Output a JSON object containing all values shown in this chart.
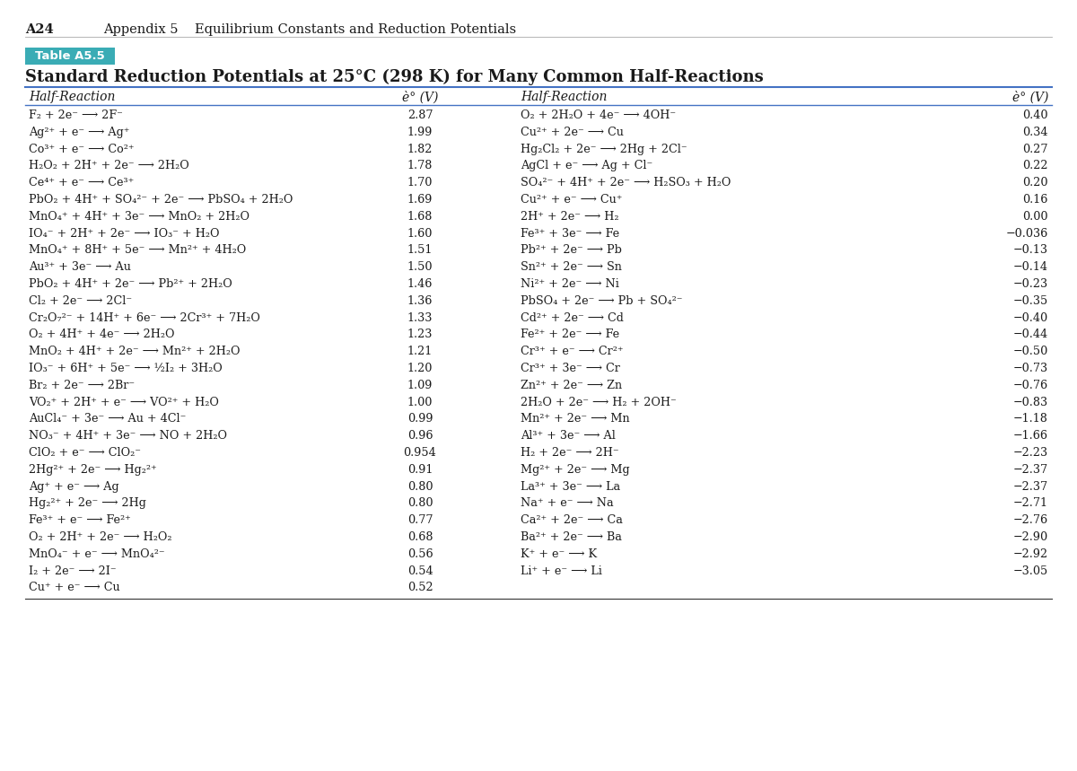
{
  "page_header_bold": "A24",
  "page_header_rest": "Appendix 5    Equilibrium Constants and Reduction Potentials",
  "table_label": "Table A5.5",
  "table_title": "Standard Reduction Potentials at 25°C (298 K) for Many Common Half-Reactions",
  "table_label_bg": "#3aacb5",
  "left_data": [
    [
      "F₂ + 2e⁻ ⟶ 2F⁻",
      "2.87"
    ],
    [
      "Ag²⁺ + e⁻ ⟶ Ag⁺",
      "1.99"
    ],
    [
      "Co³⁺ + e⁻ ⟶ Co²⁺",
      "1.82"
    ],
    [
      "H₂O₂ + 2H⁺ + 2e⁻ ⟶ 2H₂O",
      "1.78"
    ],
    [
      "Ce⁴⁺ + e⁻ ⟶ Ce³⁺",
      "1.70"
    ],
    [
      "PbO₂ + 4H⁺ + SO₄²⁻ + 2e⁻ ⟶ PbSO₄ + 2H₂O",
      "1.69"
    ],
    [
      "MnO₄⁺ + 4H⁺ + 3e⁻ ⟶ MnO₂ + 2H₂O",
      "1.68"
    ],
    [
      "IO₄⁻ + 2H⁺ + 2e⁻ ⟶ IO₃⁻ + H₂O",
      "1.60"
    ],
    [
      "MnO₄⁺ + 8H⁺ + 5e⁻ ⟶ Mn²⁺ + 4H₂O",
      "1.51"
    ],
    [
      "Au³⁺ + 3e⁻ ⟶ Au",
      "1.50"
    ],
    [
      "PbO₂ + 4H⁺ + 2e⁻ ⟶ Pb²⁺ + 2H₂O",
      "1.46"
    ],
    [
      "Cl₂ + 2e⁻ ⟶ 2Cl⁻",
      "1.36"
    ],
    [
      "Cr₂O₇²⁻ + 14H⁺ + 6e⁻ ⟶ 2Cr³⁺ + 7H₂O",
      "1.33"
    ],
    [
      "O₂ + 4H⁺ + 4e⁻ ⟶ 2H₂O",
      "1.23"
    ],
    [
      "MnO₂ + 4H⁺ + 2e⁻ ⟶ Mn²⁺ + 2H₂O",
      "1.21"
    ],
    [
      "IO₃⁻ + 6H⁺ + 5e⁻ ⟶ ½I₂ + 3H₂O",
      "1.20"
    ],
    [
      "Br₂ + 2e⁻ ⟶ 2Br⁻",
      "1.09"
    ],
    [
      "VO₂⁺ + 2H⁺ + e⁻ ⟶ VO²⁺ + H₂O",
      "1.00"
    ],
    [
      "AuCl₄⁻ + 3e⁻ ⟶ Au + 4Cl⁻",
      "0.99"
    ],
    [
      "NO₃⁻ + 4H⁺ + 3e⁻ ⟶ NO + 2H₂O",
      "0.96"
    ],
    [
      "ClO₂ + e⁻ ⟶ ClO₂⁻",
      "0.954"
    ],
    [
      "2Hg²⁺ + 2e⁻ ⟶ Hg₂²⁺",
      "0.91"
    ],
    [
      "Ag⁺ + e⁻ ⟶ Ag",
      "0.80"
    ],
    [
      "Hg₂²⁺ + 2e⁻ ⟶ 2Hg",
      "0.80"
    ],
    [
      "Fe³⁺ + e⁻ ⟶ Fe²⁺",
      "0.77"
    ],
    [
      "O₂ + 2H⁺ + 2e⁻ ⟶ H₂O₂",
      "0.68"
    ],
    [
      "MnO₄⁻ + e⁻ ⟶ MnO₄²⁻",
      "0.56"
    ],
    [
      "I₂ + 2e⁻ ⟶ 2I⁻",
      "0.54"
    ],
    [
      "Cu⁺ + e⁻ ⟶ Cu",
      "0.52"
    ]
  ],
  "right_data": [
    [
      "O₂ + 2H₂O + 4e⁻ ⟶ 4OH⁻",
      "0.40"
    ],
    [
      "Cu²⁺ + 2e⁻ ⟶ Cu",
      "0.34"
    ],
    [
      "Hg₂Cl₂ + 2e⁻ ⟶ 2Hg + 2Cl⁻",
      "0.27"
    ],
    [
      "AgCl + e⁻ ⟶ Ag + Cl⁻",
      "0.22"
    ],
    [
      "SO₄²⁻ + 4H⁺ + 2e⁻ ⟶ H₂SO₃ + H₂O",
      "0.20"
    ],
    [
      "Cu²⁺ + e⁻ ⟶ Cu⁺",
      "0.16"
    ],
    [
      "2H⁺ + 2e⁻ ⟶ H₂",
      "0.00"
    ],
    [
      "Fe³⁺ + 3e⁻ ⟶ Fe",
      "−0.036"
    ],
    [
      "Pb²⁺ + 2e⁻ ⟶ Pb",
      "−0.13"
    ],
    [
      "Sn²⁺ + 2e⁻ ⟶ Sn",
      "−0.14"
    ],
    [
      "Ni²⁺ + 2e⁻ ⟶ Ni",
      "−0.23"
    ],
    [
      "PbSO₄ + 2e⁻ ⟶ Pb + SO₄²⁻",
      "−0.35"
    ],
    [
      "Cd²⁺ + 2e⁻ ⟶ Cd",
      "−0.40"
    ],
    [
      "Fe²⁺ + 2e⁻ ⟶ Fe",
      "−0.44"
    ],
    [
      "Cr³⁺ + e⁻ ⟶ Cr²⁺",
      "−0.50"
    ],
    [
      "Cr³⁺ + 3e⁻ ⟶ Cr",
      "−0.73"
    ],
    [
      "Zn²⁺ + 2e⁻ ⟶ Zn",
      "−0.76"
    ],
    [
      "2H₂O + 2e⁻ ⟶ H₂ + 2OH⁻",
      "−0.83"
    ],
    [
      "Mn²⁺ + 2e⁻ ⟶ Mn",
      "−1.18"
    ],
    [
      "Al³⁺ + 3e⁻ ⟶ Al",
      "−1.66"
    ],
    [
      "H₂ + 2e⁻ ⟶ 2H⁻",
      "−2.23"
    ],
    [
      "Mg²⁺ + 2e⁻ ⟶ Mg",
      "−2.37"
    ],
    [
      "La³⁺ + 3e⁻ ⟶ La",
      "−2.37"
    ],
    [
      "Na⁺ + e⁻ ⟶ Na",
      "−2.71"
    ],
    [
      "Ca²⁺ + 2e⁻ ⟶ Ca",
      "−2.76"
    ],
    [
      "Ba²⁺ + 2e⁻ ⟶ Ba",
      "−2.90"
    ],
    [
      "K⁺ + e⁻ ⟶ K",
      "−2.92"
    ],
    [
      "Li⁺ + e⁻ ⟶ Li",
      "−3.05"
    ],
    [
      "",
      ""
    ]
  ],
  "bg_color": "#ffffff",
  "text_color": "#1a1a1a",
  "teal_color": "#3aacb5",
  "header_line_color": "#4472c4",
  "page_hdr_fontsize": 10.5,
  "title_fontsize": 13,
  "col_hdr_fontsize": 10,
  "body_fontsize": 9.2
}
